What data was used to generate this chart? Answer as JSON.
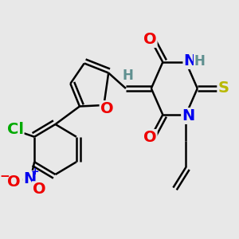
{
  "bg_color": "#e8e8e8",
  "atom_colors": {
    "C": "#000000",
    "H": "#5f9090",
    "N": "#0000ee",
    "O": "#ee0000",
    "S": "#b8b800",
    "Cl": "#00aa00"
  },
  "bond_color": "#000000",
  "bond_lw": 1.8,
  "font_size": 14,
  "font_size_h": 12
}
